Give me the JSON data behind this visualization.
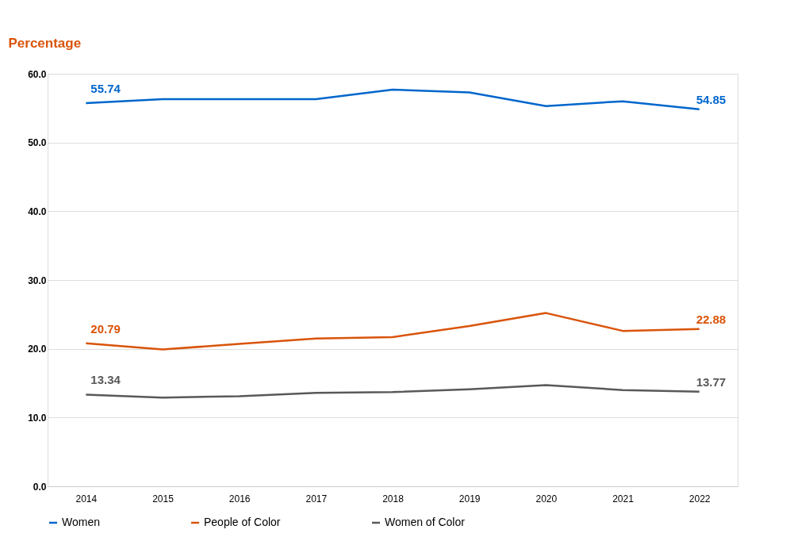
{
  "chart_data": {
    "type": "line",
    "ylabel": "Percentage",
    "categories": [
      "2014",
      "2015",
      "2016",
      "2017",
      "2018",
      "2019",
      "2020",
      "2021",
      "2022"
    ],
    "series": [
      {
        "name": "Women",
        "color": "#0066cc",
        "values": [
          55.74,
          56.3,
          56.3,
          56.3,
          57.7,
          57.3,
          55.3,
          56.0,
          54.85
        ],
        "value_labels": [
          "55.74",
          null,
          null,
          null,
          null,
          null,
          null,
          null,
          "54.85"
        ]
      },
      {
        "name": "People of Color",
        "color": "#d9540a",
        "values": [
          20.79,
          19.9,
          20.7,
          21.5,
          21.7,
          23.3,
          25.2,
          22.6,
          22.88
        ],
        "value_labels": [
          "20.79",
          null,
          null,
          null,
          null,
          null,
          null,
          null,
          "22.88"
        ]
      },
      {
        "name": "Women of Color",
        "color": "#595959",
        "values": [
          13.34,
          12.9,
          13.1,
          13.6,
          13.7,
          14.1,
          14.7,
          14.0,
          13.77
        ],
        "value_labels": [
          "13.34",
          null,
          null,
          null,
          null,
          null,
          null,
          null,
          "13.77"
        ]
      }
    ],
    "ylim": [
      0,
      60
    ],
    "yticks": [
      {
        "value": 0,
        "label": "0.0"
      },
      {
        "value": 10,
        "label": "10.0"
      },
      {
        "value": 20,
        "label": "20.0"
      },
      {
        "value": 30,
        "label": "30.0"
      },
      {
        "value": 40,
        "label": "40.0"
      },
      {
        "value": 50,
        "label": "50.0"
      },
      {
        "value": 60,
        "label": "60.0"
      }
    ],
    "grid": "y",
    "legend": "bottom",
    "marker": "none",
    "line_style": "solid"
  }
}
